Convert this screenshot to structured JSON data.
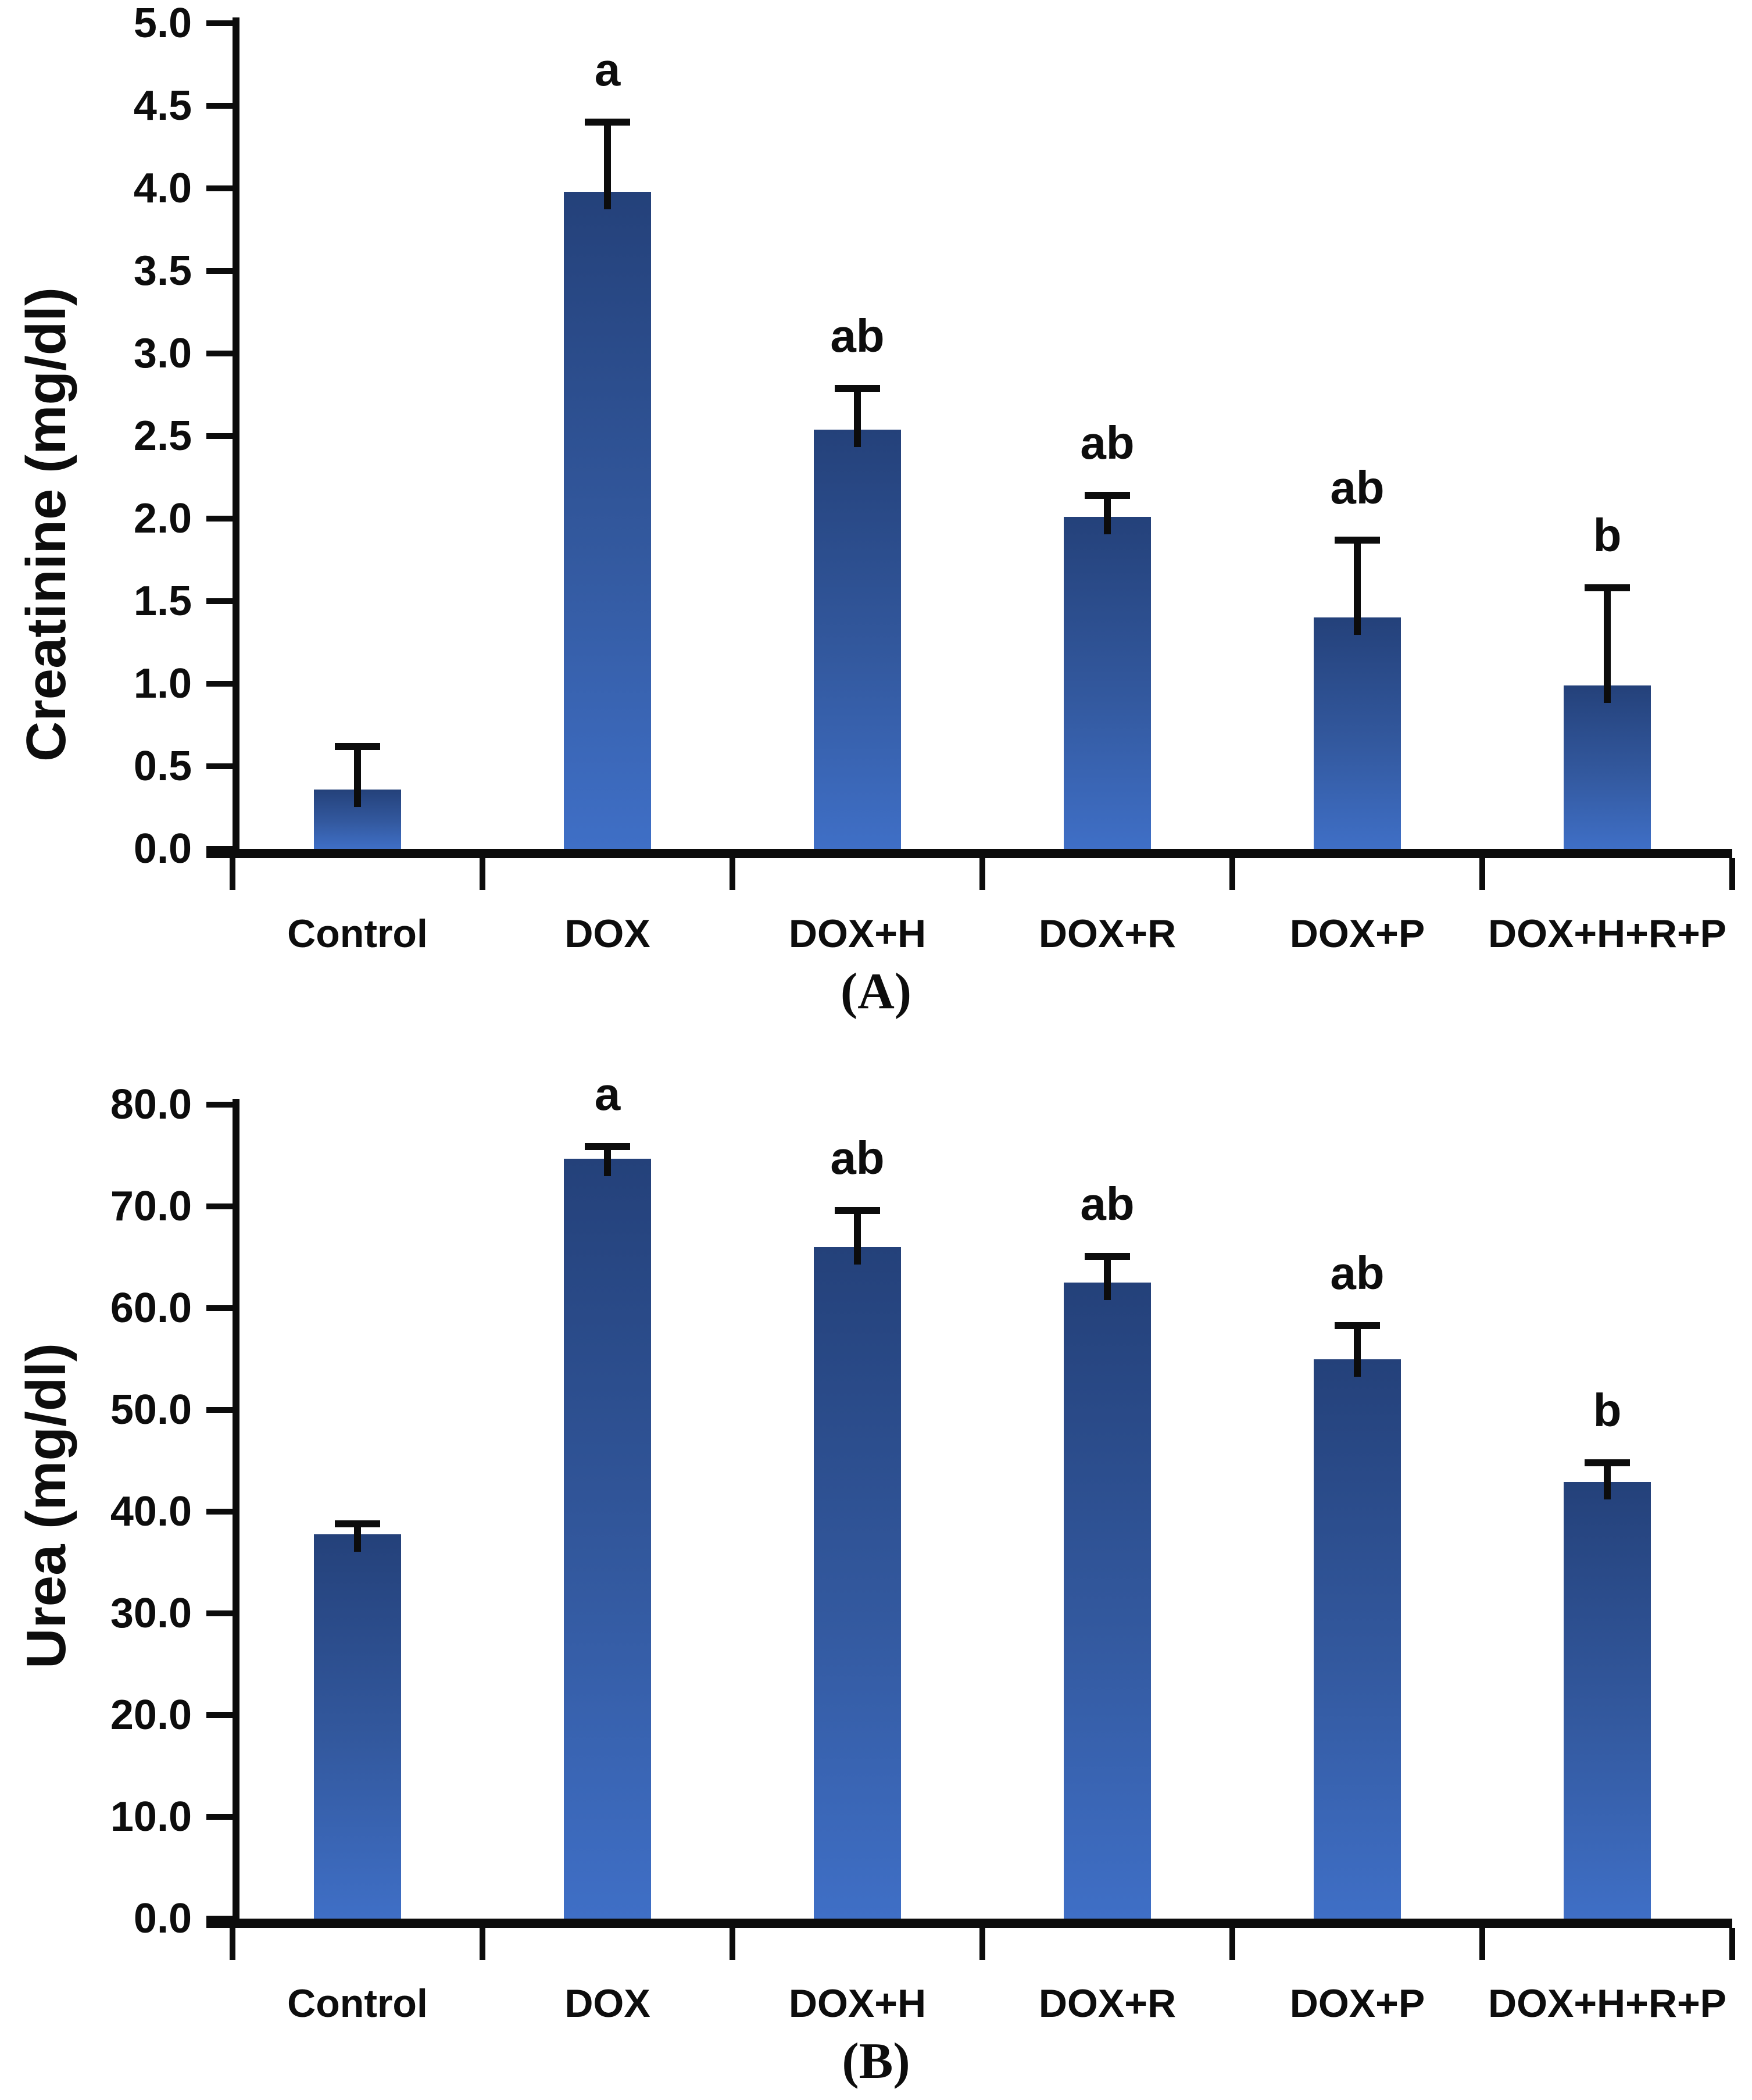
{
  "figure": {
    "background": "#ffffff",
    "n_panels": 2
  },
  "colors": {
    "bar_gradient_top": "#24417a",
    "bar_gradient_mid": "#33599f",
    "bar_gradient_bottom": "#3f6fc6",
    "axis": "#0c0c0c",
    "text": "#0d0d0d"
  },
  "chart_data": [
    {
      "type": "bar",
      "panel_caption": "(A)",
      "title": "",
      "xlabel": "",
      "ylabel": "Creatinine (mg/dl)",
      "ylim": [
        0,
        5
      ],
      "ytick_step": 0.5,
      "yticks": [
        "5.0",
        "4.5",
        "4.0",
        "3.5",
        "3.0",
        "2.5",
        "2.0",
        "1.5",
        "1.0",
        "0.5",
        "0.0"
      ],
      "categories": [
        "Control",
        "DOX",
        "DOX+H",
        "DOX+R",
        "DOX+P",
        "DOX+H+R+P"
      ],
      "values": [
        0.36,
        3.98,
        2.54,
        2.01,
        1.4,
        0.99
      ],
      "error_plus": [
        0.26,
        0.42,
        0.25,
        0.13,
        0.47,
        0.59
      ],
      "sig_letters": [
        "",
        "a",
        "ab",
        "ab",
        "ab",
        "b"
      ],
      "grid": false,
      "legend": null
    },
    {
      "type": "bar",
      "panel_caption": "(B)",
      "title": "",
      "xlabel": "",
      "ylabel": "Urea (mg/dl)",
      "ylim": [
        0,
        80
      ],
      "ytick_step": 10,
      "yticks": [
        "80.0",
        "70.0",
        "60.0",
        "50.0",
        "40.0",
        "30.0",
        "20.0",
        "10.0",
        "0.0"
      ],
      "categories": [
        "Control",
        "DOX",
        "DOX+H",
        "DOX+R",
        "DOX+P",
        "DOX+H+R+P"
      ],
      "values": [
        37.8,
        74.7,
        66.0,
        62.5,
        55.0,
        42.9
      ],
      "error_plus": [
        1.0,
        1.2,
        3.6,
        2.6,
        3.3,
        1.9
      ],
      "sig_letters": [
        "",
        "a",
        "ab",
        "ab",
        "ab",
        "b"
      ],
      "grid": false,
      "legend": null
    }
  ]
}
